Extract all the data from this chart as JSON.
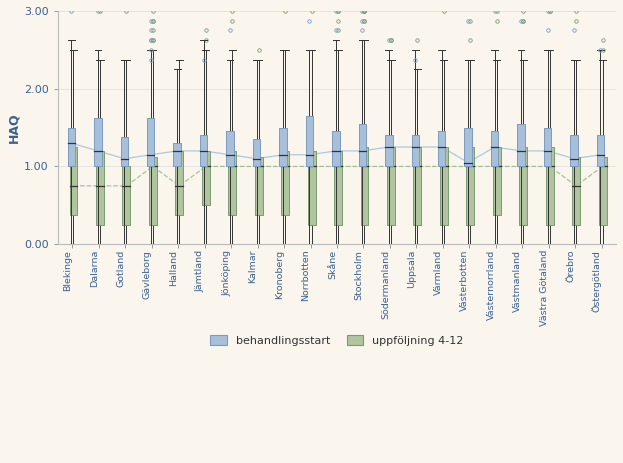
{
  "regions": [
    "Blekinge",
    "Dalarna",
    "Gotland",
    "Gävleborg",
    "Halland",
    "Jämtland",
    "Jönköping",
    "Kalmar",
    "Kronoberg",
    "Norrbotten",
    "Skåne",
    "Stockholm",
    "Södermanland",
    "Uppsala",
    "Värmland",
    "Västerbotten",
    "Västernorrland",
    "Västmanland",
    "Västra Götaland",
    "Örebro",
    "Östergötland"
  ],
  "blue_boxes": {
    "q1": [
      1.0,
      1.0,
      1.0,
      1.0,
      1.0,
      1.0,
      1.0,
      1.0,
      1.0,
      1.0,
      1.0,
      1.0,
      1.0,
      1.0,
      1.0,
      1.0,
      1.0,
      1.0,
      1.0,
      1.0,
      1.0
    ],
    "median": [
      1.3,
      1.2,
      1.1,
      1.15,
      1.2,
      1.2,
      1.15,
      1.1,
      1.15,
      1.15,
      1.2,
      1.2,
      1.25,
      1.25,
      1.25,
      1.05,
      1.25,
      1.2,
      1.2,
      1.1,
      1.15
    ],
    "q3": [
      1.5,
      1.625,
      1.375,
      1.625,
      1.3,
      1.4,
      1.45,
      1.35,
      1.5,
      1.65,
      1.45,
      1.55,
      1.4,
      1.4,
      1.45,
      1.5,
      1.45,
      1.55,
      1.5,
      1.4,
      1.4
    ],
    "whisker_low": [
      0.0,
      0.0,
      0.0,
      0.0,
      0.0,
      0.0,
      0.0,
      0.0,
      0.0,
      0.0,
      0.0,
      0.0,
      0.0,
      0.0,
      0.0,
      0.0,
      0.0,
      0.0,
      0.0,
      0.0,
      0.0
    ],
    "whisker_high": [
      2.625,
      2.5,
      2.375,
      2.5,
      2.25,
      2.625,
      2.375,
      2.375,
      2.5,
      2.5,
      2.625,
      2.625,
      2.5,
      2.5,
      2.5,
      2.375,
      2.5,
      2.5,
      2.5,
      2.375,
      2.5
    ],
    "outliers_y": [
      [
        3.0
      ],
      [
        3.0
      ],
      [],
      [
        2.375,
        2.5,
        2.625,
        2.625,
        2.75,
        2.875
      ],
      [],
      [
        2.375
      ],
      [
        2.75
      ],
      [],
      [],
      [
        2.875
      ],
      [
        3.0,
        2.75
      ],
      [
        3.0,
        2.75,
        2.875
      ],
      [
        2.625
      ],
      [
        2.375
      ],
      [],
      [
        2.875
      ],
      [
        3.0
      ],
      [
        2.875
      ],
      [
        3.0,
        2.75
      ],
      [
        2.75
      ],
      [
        2.5
      ]
    ]
  },
  "green_boxes": {
    "q1": [
      0.375,
      0.25,
      0.25,
      0.25,
      0.375,
      0.5,
      0.375,
      0.375,
      0.375,
      0.25,
      0.25,
      0.25,
      0.25,
      0.25,
      0.25,
      0.25,
      0.375,
      0.25,
      0.25,
      0.25,
      0.25
    ],
    "median": [
      0.75,
      0.75,
      0.75,
      1.0,
      0.75,
      1.0,
      1.0,
      1.0,
      1.0,
      1.0,
      1.0,
      1.0,
      1.0,
      1.0,
      1.0,
      1.0,
      1.0,
      1.0,
      1.0,
      0.75,
      1.0
    ],
    "q3": [
      1.25,
      1.2,
      1.0,
      1.125,
      1.2,
      1.2,
      1.2,
      1.125,
      1.2,
      1.2,
      1.2,
      1.25,
      1.25,
      1.25,
      1.25,
      1.25,
      1.25,
      1.25,
      1.25,
      1.125,
      1.125
    ],
    "whisker_low": [
      0.0,
      0.0,
      0.0,
      0.0,
      0.0,
      0.0,
      0.0,
      0.0,
      0.0,
      0.0,
      0.0,
      0.0,
      0.0,
      0.0,
      0.0,
      0.0,
      0.0,
      0.0,
      0.0,
      0.0,
      0.0
    ],
    "whisker_high": [
      2.5,
      2.375,
      2.375,
      2.5,
      2.375,
      2.5,
      2.5,
      2.375,
      2.5,
      2.5,
      2.5,
      2.625,
      2.375,
      2.25,
      2.375,
      2.375,
      2.375,
      2.375,
      2.5,
      2.375,
      2.375
    ],
    "outliers_y": [
      [],
      [
        3.0
      ],
      [
        3.0
      ],
      [
        3.0,
        2.875,
        2.625,
        2.625,
        2.75,
        2.875
      ],
      [],
      [
        2.75,
        2.625
      ],
      [
        3.0,
        2.875
      ],
      [
        2.5
      ],
      [
        3.0
      ],
      [
        3.0
      ],
      [
        3.0,
        3.0,
        2.875,
        2.75
      ],
      [
        3.0,
        3.0,
        3.0,
        3.0,
        2.875,
        2.875
      ],
      [
        2.625,
        2.625
      ],
      [
        2.625
      ],
      [
        3.0
      ],
      [
        2.875,
        2.625
      ],
      [
        2.875,
        3.0
      ],
      [
        3.0,
        2.875,
        2.875
      ],
      [
        3.0,
        3.0
      ],
      [
        3.0,
        2.875
      ],
      [
        2.5,
        2.625
      ]
    ]
  },
  "ylim": [
    0.0,
    3.0
  ],
  "ylabel": "HAQ",
  "background_color": "#faf6ee",
  "blue_color": "#a8bfda",
  "green_color": "#b0c4a0",
  "blue_edge": "#7a9bbf",
  "green_edge": "#7a9a70",
  "blue_line_color": "#a0c0d8",
  "green_line_color": "#98b888",
  "legend_blue": "behandlingsstart",
  "legend_green": "uppföljning 4-12"
}
